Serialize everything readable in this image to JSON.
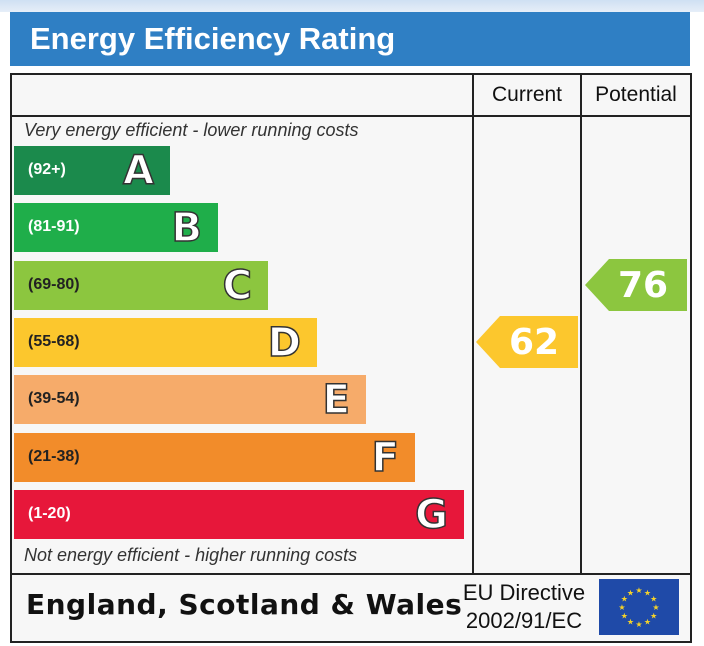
{
  "header": {
    "title": "Energy Efficiency Rating"
  },
  "columns": {
    "current": "Current",
    "potential": "Potential"
  },
  "captions": {
    "top": "Very energy efficient - lower running costs",
    "bottom": "Not energy efficient - higher running costs"
  },
  "footer": {
    "region": "England, Scotland & Wales",
    "directive_line1": "EU Directive",
    "directive_line2": "2002/91/EC"
  },
  "colors": {
    "header": "#2f7fc4",
    "A": "#1b8a4c",
    "B": "#1fae4a",
    "C": "#8cc63f",
    "D": "#fcc72d",
    "E": "#f6ab6a",
    "F": "#f28c2a",
    "G": "#e7173a",
    "eu_flag": "#1f4aa8",
    "eu_stars": "#f4d22a"
  },
  "chart_data": {
    "type": "bar",
    "categories": [
      "A",
      "B",
      "C",
      "D",
      "E",
      "F",
      "G"
    ],
    "ranges": [
      "(92+)",
      "(81-91)",
      "(69-80)",
      "(55-68)",
      "(39-54)",
      "(21-38)",
      "(1-20)"
    ],
    "band_min": [
      92,
      81,
      69,
      55,
      39,
      21,
      1
    ],
    "band_max": [
      100,
      91,
      80,
      68,
      54,
      38,
      20
    ],
    "current": {
      "value": 62,
      "band": "D",
      "color": "#fcc72d"
    },
    "potential": {
      "value": 76,
      "band": "C",
      "color": "#8cc63f"
    }
  }
}
